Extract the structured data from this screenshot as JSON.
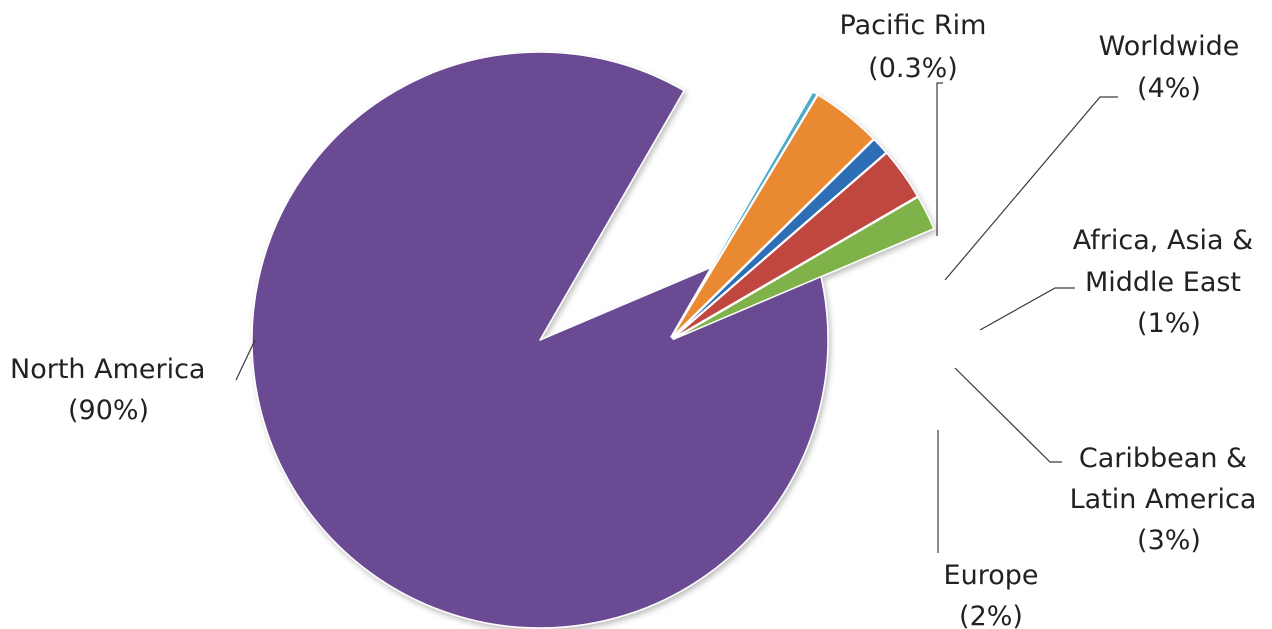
{
  "chart_data": {
    "type": "pie",
    "title": "",
    "legend": "none",
    "slices": [
      {
        "name": "North America",
        "label": "(90%)",
        "value": 90,
        "color": "#6b4c93"
      },
      {
        "name": "Pacific Rim",
        "label": "(0.3%)",
        "value": 0.3,
        "color": "#4bacc6"
      },
      {
        "name": "Worldwide",
        "label": "(4%)",
        "value": 4,
        "color": "#e98a33"
      },
      {
        "name": "Africa, Asia & Middle East",
        "label": "(1%)",
        "value": 1,
        "color": "#2e6eb5"
      },
      {
        "name": "Caribbean & Latin America",
        "label": "(3%)",
        "value": 3,
        "color": "#c0463f"
      },
      {
        "name": "Europe",
        "label": "(2%)",
        "value": 2,
        "color": "#7fb24a"
      }
    ]
  }
}
